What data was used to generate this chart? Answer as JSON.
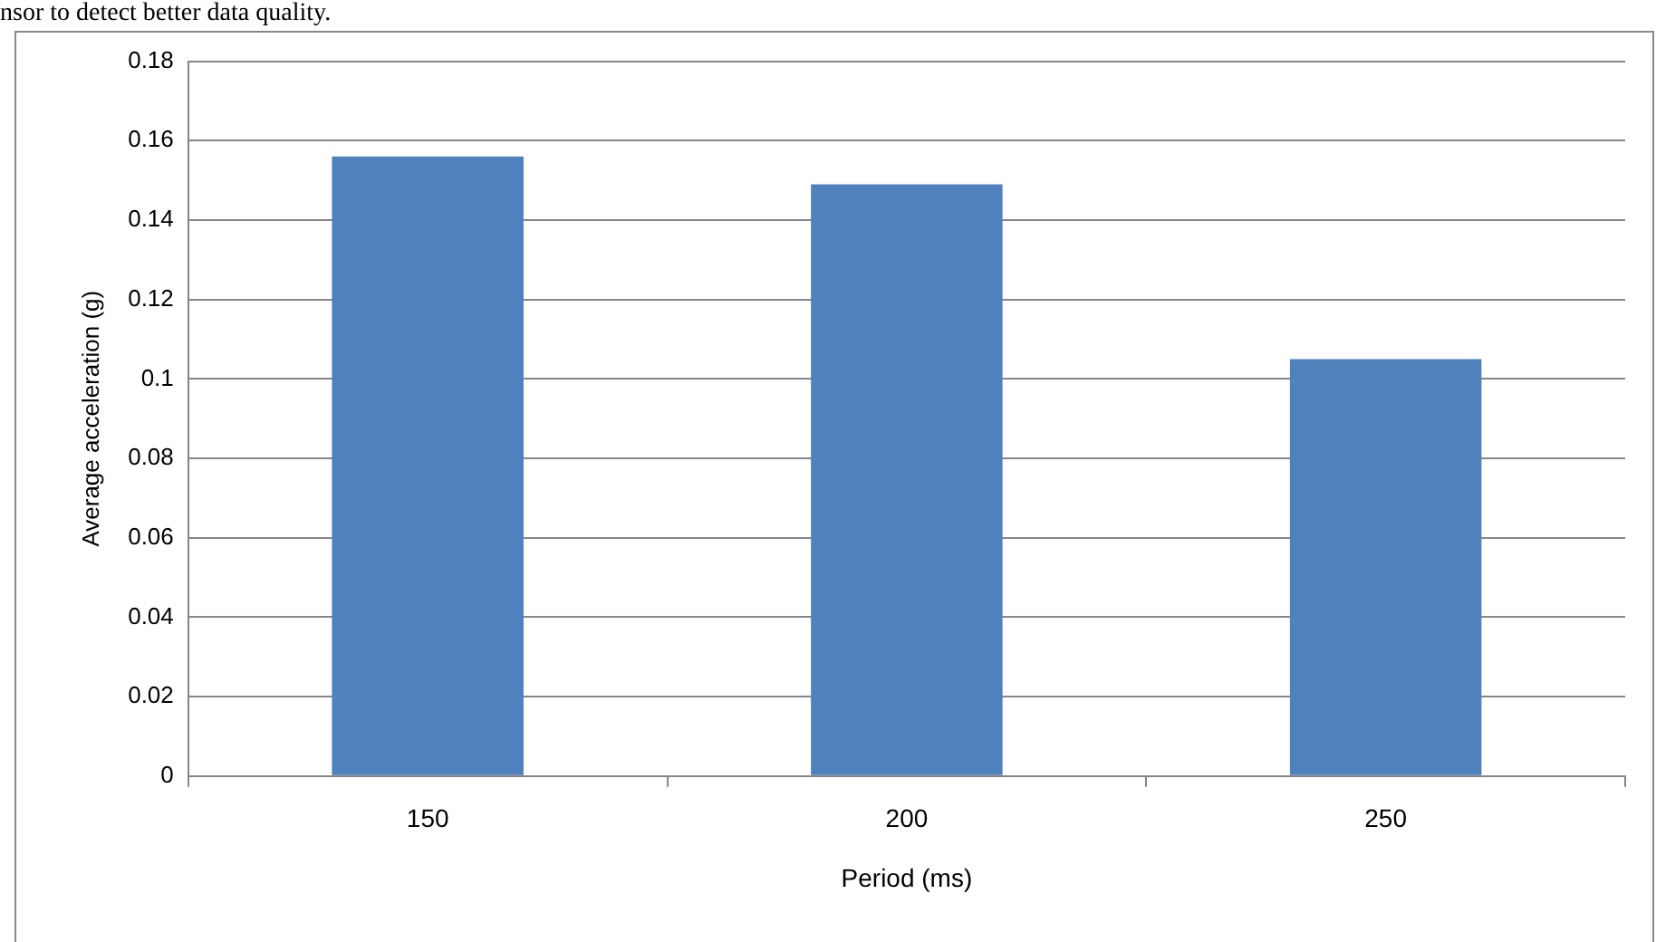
{
  "chart_data": {
    "type": "bar",
    "categories": [
      "150",
      "200",
      "250"
    ],
    "values": [
      0.156,
      0.149,
      0.105
    ],
    "color": "#4f81bd",
    "xlabel": "Period (ms)",
    "ylabel": "Average acceleration (g)",
    "ylim": [
      0,
      0.18
    ],
    "yticks": [
      0,
      0.02,
      0.04,
      0.06,
      0.08,
      0.1,
      0.12,
      0.14,
      0.16,
      0.18
    ],
    "grid": "y",
    "legend": false,
    "annotations": [
      "nsor to detect better data quality."
    ]
  }
}
